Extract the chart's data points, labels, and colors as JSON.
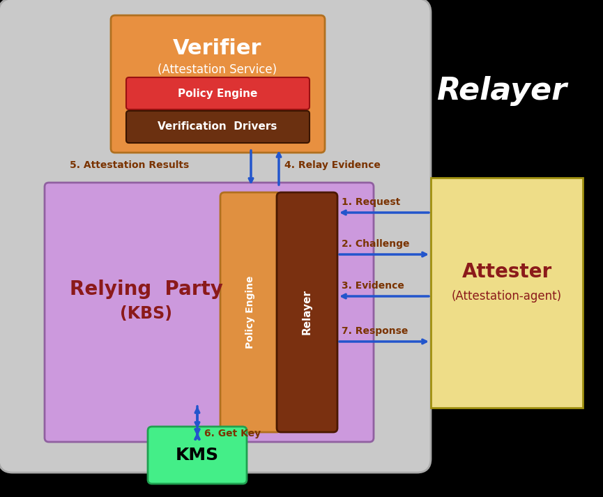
{
  "bg_color": "#000000",
  "main_bg": "#c9c9c9",
  "relying_party_color": "#cc99dd",
  "verifier_color": "#e89040",
  "policy_engine_inner_color": "#dd3333",
  "verification_drivers_color": "#6B3010",
  "pe_relayer_orange": "#e09040",
  "relayer_brown": "#7a3010",
  "attester_color": "#eedd88",
  "kms_color": "#44ee88",
  "arrow_color": "#2255cc",
  "label_color": "#7a3300",
  "watermark_color": "#ffffff",
  "verifier_title": "Verifier",
  "verifier_subtitle": "(Attestation Service)",
  "pe_label": "Policy Engine",
  "vd_label": "Verification  Drivers",
  "rp_title": "Relying  Party",
  "rp_subtitle": "(KBS)",
  "pe_vert_label": "Policy Engine",
  "relayer_label": "Relayer",
  "attester_title": "Attester",
  "attester_subtitle": "(Attestation-agent)",
  "kms_label": "KMS",
  "watermark": "Relayer"
}
